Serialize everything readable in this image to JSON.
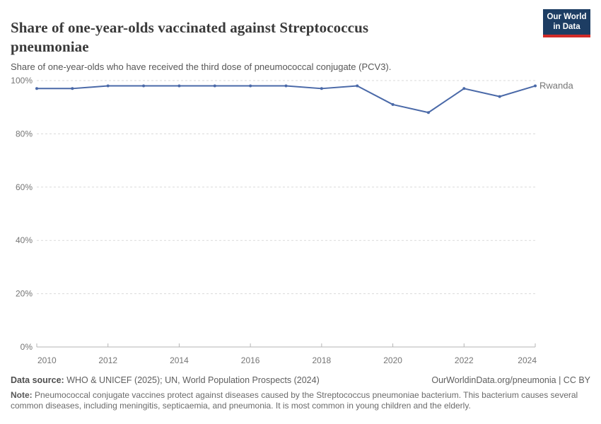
{
  "header": {
    "title": "Share of one-year-olds vaccinated against Streptococcus pneumoniae",
    "subtitle": "Share of one-year-olds who have received the third dose of pneumococcal conjugate (PCV3).",
    "logo": {
      "line1": "Our World",
      "line2": "in Data",
      "bg_color": "#1d3d63",
      "accent_color": "#d12b28"
    }
  },
  "chart_data": {
    "type": "line",
    "title": "Share of one-year-olds vaccinated against Streptococcus pneumoniae",
    "x": [
      2010,
      2011,
      2012,
      2013,
      2014,
      2015,
      2016,
      2017,
      2018,
      2019,
      2020,
      2021,
      2022,
      2023,
      2024
    ],
    "series": [
      {
        "name": "Rwanda",
        "color": "#4a69a8",
        "values": [
          97,
          97,
          98,
          98,
          98,
          98,
          98,
          98,
          97,
          98,
          91,
          88,
          97,
          94,
          98
        ]
      }
    ],
    "ylim": [
      0,
      100
    ],
    "yticks": [
      0,
      20,
      40,
      60,
      80,
      100
    ],
    "ytick_suffix": "%",
    "xticks": [
      2010,
      2012,
      2014,
      2016,
      2018,
      2020,
      2022,
      2024
    ],
    "grid": "horizontal-dashed",
    "legend": "end-of-line-label"
  },
  "footer": {
    "datasource_label": "Data source:",
    "datasource_text": " WHO & UNICEF (2025); UN, World Population Prospects (2024)",
    "rights": "OurWorldinData.org/pneumonia | CC BY",
    "note_label": "Note:",
    "note_text": " Pneumococcal conjugate vaccines protect against diseases caused by the Streptococcus pneumoniae bacterium. This bacterium causes several common diseases, including meningitis, septicaemia, and pneumonia. It is most common in young children and the elderly."
  }
}
